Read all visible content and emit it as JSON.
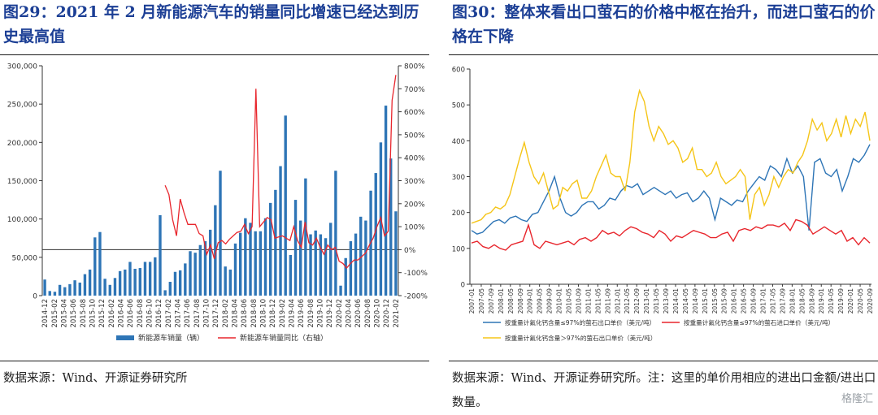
{
  "left": {
    "title": "图29：2021 年 2 月新能源汽车的销量同比增速已经达到历史最高值",
    "source": "数据来源：Wind、开源证券研究所"
  },
  "right": {
    "title": "图30：整体来看出口萤石的价格中枢在抬升，而进口萤石的价格在下降",
    "source": "数据来源：Wind、开源证券研究所。注：这里的单价用相应的进出口金额/进出口数量。"
  },
  "watermark": "格隆汇",
  "colors": {
    "bar": "#2e75b6",
    "red": "#e8262d",
    "blue": "#2e75b6",
    "yellow": "#f5c518",
    "axis": "#333333"
  },
  "chart_data": [
    {
      "type": "bar+line",
      "title": "",
      "x_labels": [
        "2014-12",
        "2015-02",
        "2015-04",
        "2015-06",
        "2015-08",
        "2015-10",
        "2015-12",
        "2016-02",
        "2016-04",
        "2016-06",
        "2016-08",
        "2016-10",
        "2016-12",
        "2017-02",
        "2017-04",
        "2017-06",
        "2017-08",
        "2017-10",
        "2017-12",
        "2018-02",
        "2018-04",
        "2018-06",
        "2018-08",
        "2018-10",
        "2018-12",
        "2019-02",
        "2019-04",
        "2019-06",
        "2019-08",
        "2019-10",
        "2019-12",
        "2020-02",
        "2020-04",
        "2020-06",
        "2020-08",
        "2020-10",
        "2020-12",
        "2021-02"
      ],
      "bars": {
        "name": "新能源车销量（辆）",
        "axis": "left",
        "values": [
          21000,
          6000,
          5000,
          14000,
          11000,
          15000,
          20000,
          17000,
          28000,
          34000,
          76000,
          83000,
          22000,
          14000,
          23000,
          32000,
          34000,
          44000,
          35000,
          36000,
          44000,
          44000,
          50000,
          105000,
          7000,
          18000,
          31000,
          33000,
          42000,
          58000,
          56000,
          66000,
          71000,
          86000,
          118000,
          163000,
          38000,
          34000,
          68000,
          82000,
          101000,
          95000,
          84000,
          84000,
          101000,
          121000,
          138000,
          169000,
          235000,
          53000,
          125000,
          98000,
          153000,
          80000,
          85000,
          80000,
          75000,
          95000,
          163000,
          13000,
          49000,
          71000,
          81000,
          103000,
          98000,
          137000,
          160000,
          200000,
          248000,
          179000,
          110000
        ]
      },
      "line": {
        "name": "新能源车销量同比（右轴）",
        "axis": "right",
        "start_index": 24,
        "values": [
          280,
          240,
          130,
          60,
          220,
          160,
          110,
          110,
          110,
          70,
          60,
          -20,
          20,
          -40,
          30,
          40,
          25,
          45,
          60,
          75,
          80,
          110,
          70,
          100,
          700,
          100,
          120,
          140,
          130,
          50,
          55,
          60,
          50,
          40,
          100,
          40,
          10,
          120,
          30,
          20,
          50,
          10,
          -20,
          20,
          0,
          10,
          -50,
          -60,
          -80,
          -60,
          -45,
          -45,
          -30,
          -15,
          20,
          50,
          100,
          140,
          60,
          80,
          650,
          760
        ]
      },
      "y_left": {
        "min": 0,
        "max": 300000,
        "ticks": [
          "0",
          "50,000",
          "100,000",
          "150,000",
          "200,000",
          "250,000",
          "300,000"
        ]
      },
      "y_right": {
        "min": -200,
        "max": 800,
        "ticks": [
          "-200%",
          "-100%",
          "0%",
          "100%",
          "200%",
          "300%",
          "400%",
          "500%",
          "600%",
          "700%",
          "800%"
        ]
      },
      "legend": [
        "新能源车销量（辆）",
        "新能源车销量同比（右轴）"
      ]
    },
    {
      "type": "line",
      "title": "",
      "x_labels": [
        "2007-01",
        "2007-05",
        "2007-09",
        "2008-01",
        "2008-05",
        "2008-09",
        "2009-01",
        "2009-05",
        "2009-09",
        "2010-01",
        "2010-05",
        "2010-09",
        "2011-01",
        "2011-05",
        "2011-09",
        "2012-01",
        "2012-05",
        "2012-09",
        "2013-01",
        "2013-05",
        "2013-09",
        "2014-01",
        "2014-05",
        "2014-09",
        "2015-01",
        "2015-05",
        "2015-09",
        "2016-01",
        "2016-05",
        "2016-09",
        "2017-01",
        "2017-05",
        "2017-09",
        "2018-01",
        "2018-05",
        "2018-09",
        "2019-01",
        "2019-05",
        "2019-09",
        "2020-01",
        "2020-05",
        "2020-09"
      ],
      "y": {
        "min": 0,
        "max": 600,
        "ticks": [
          "0",
          "100",
          "200",
          "300",
          "400",
          "500",
          "600"
        ]
      },
      "series": [
        {
          "name": "按重量计氟化钙含量≤97%的萤石出口单价（美元/吨）",
          "color": "blue",
          "values": [
            150,
            140,
            145,
            160,
            175,
            180,
            170,
            185,
            190,
            180,
            175,
            195,
            200,
            230,
            260,
            300,
            240,
            200,
            190,
            200,
            220,
            230,
            230,
            210,
            220,
            240,
            235,
            260,
            275,
            270,
            280,
            250,
            260,
            270,
            260,
            250,
            260,
            240,
            250,
            255,
            230,
            240,
            260,
            240,
            180,
            240,
            230,
            220,
            235,
            230,
            260,
            280,
            300,
            290,
            330,
            320,
            300,
            350,
            310,
            330,
            300,
            150,
            340,
            350,
            310,
            300,
            320,
            260,
            300,
            350,
            340,
            360,
            390
          ]
        },
        {
          "name": "按重量计氟化钙含量≤97%的萤石进口单价（美元/吨）",
          "color": "red",
          "values": [
            115,
            120,
            105,
            100,
            110,
            100,
            95,
            110,
            115,
            120,
            165,
            110,
            100,
            120,
            115,
            110,
            115,
            120,
            110,
            125,
            130,
            120,
            130,
            150,
            140,
            145,
            135,
            150,
            160,
            155,
            145,
            140,
            130,
            150,
            140,
            120,
            135,
            130,
            140,
            150,
            145,
            140,
            130,
            130,
            140,
            145,
            120,
            150,
            155,
            150,
            160,
            155,
            165,
            165,
            160,
            170,
            150,
            180,
            175,
            165,
            140,
            150,
            160,
            150,
            140,
            150,
            120,
            130,
            110,
            130,
            115
          ]
        },
        {
          "name": "按重量计氟化钙含量＞97%的萤石出口单价（美元/吨）",
          "color": "yellow",
          "values": [
            170,
            175,
            180,
            195,
            200,
            215,
            210,
            220,
            250,
            300,
            350,
            395,
            340,
            300,
            280,
            310,
            260,
            210,
            220,
            270,
            260,
            280,
            290,
            240,
            240,
            260,
            300,
            330,
            360,
            310,
            300,
            300,
            260,
            340,
            480,
            540,
            510,
            440,
            400,
            440,
            420,
            390,
            400,
            380,
            340,
            350,
            380,
            320,
            320,
            300,
            310,
            340,
            300,
            280,
            290,
            300,
            320,
            300,
            180,
            250,
            270,
            220,
            250,
            300,
            270,
            300,
            320,
            310,
            340,
            360,
            400,
            460,
            430,
            450,
            400,
            420,
            460,
            410,
            470,
            420,
            460,
            440,
            480,
            400
          ]
        }
      ],
      "legend": [
        "按重量计氟化钙含量≤97%的萤石出口单价（美元/吨）",
        "按重量计氟化钙含量≤97%的萤石进口单价（美元/吨）",
        "按重量计氟化钙含量＞97%的萤石出口单价（美元/吨）"
      ]
    }
  ]
}
